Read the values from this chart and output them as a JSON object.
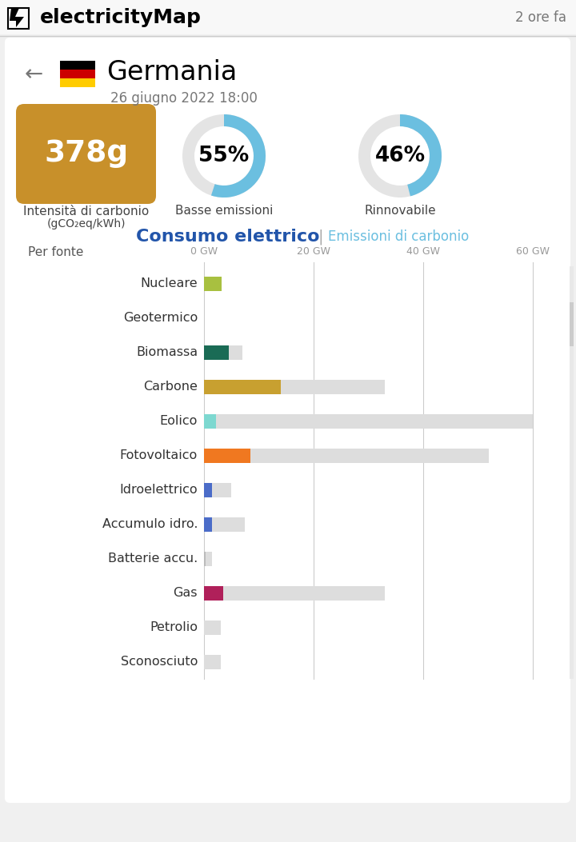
{
  "title_app": "electricityMap",
  "time_label": "2 ore fa",
  "country": "Germania",
  "date_label": "26 giugno 2022 18:00",
  "carbon_intensity": "378g",
  "carbon_color": "#C8902A",
  "low_emission_pct": 55,
  "renewable_pct": 46,
  "donut_color": "#6BBFE0",
  "donut_bg": "#E4E4E4",
  "section_title_left": "Consumo elettrico",
  "section_title_right": "Emissioni di carbonio",
  "section_title_color": "#2255AA",
  "section_title_right_color": "#6BBFE0",
  "per_fonte_label": "Per fonte",
  "x_ticks": [
    0,
    20,
    40,
    60
  ],
  "bar_labels": [
    "Nucleare",
    "Geotermico",
    "Biomassa",
    "Carbone",
    "Eolico",
    "Fotovoltaico",
    "Idroelettrico",
    "Accumulo idro.",
    "Batterie accu.",
    "Gas",
    "Petrolio",
    "Sconosciuto"
  ],
  "bar_values": [
    3.2,
    0.0,
    4.5,
    14.0,
    2.2,
    8.5,
    1.5,
    1.5,
    0.3,
    3.5,
    0.0,
    0.0
  ],
  "bar_bg_values": [
    0.0,
    0.0,
    7.0,
    33.0,
    60.0,
    52.0,
    5.0,
    7.5,
    1.5,
    33.0,
    3.0,
    3.0
  ],
  "bar_colors": [
    "#A8C040",
    "#888888",
    "#1A6B55",
    "#C8A030",
    "#7DD8D0",
    "#F07820",
    "#4B6CC8",
    "#4B6CC8",
    "#BBBBBB",
    "#B0205A",
    "#CCCCCC",
    "#CCCCCC"
  ],
  "bg_color": "#F0F0F0",
  "header_bg": "#F8F8F8",
  "card_bg": "#FFFFFF",
  "text_color": "#333333",
  "gray_bar_color": "#DDDDDD",
  "label_color": "#444444",
  "tick_color": "#999999"
}
